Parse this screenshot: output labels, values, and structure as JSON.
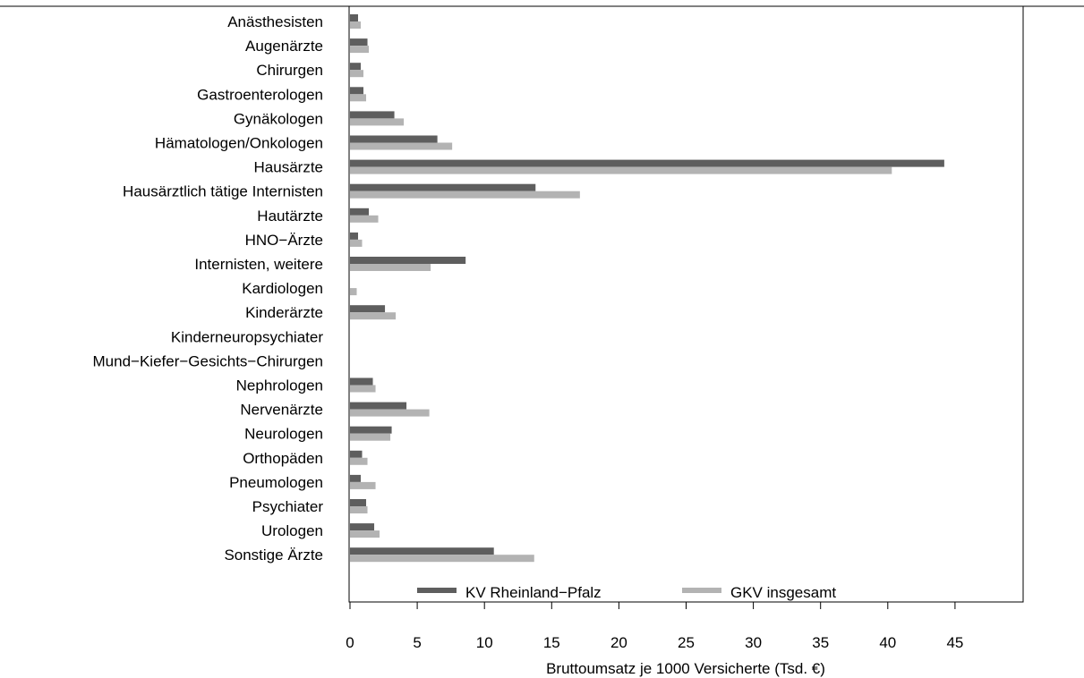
{
  "chart_data": {
    "type": "bar",
    "orientation": "horizontal",
    "categories": [
      "Anästhesisten",
      "Augenärzte",
      "Chirurgen",
      "Gastroenterologen",
      "Gynäkologen",
      "Hämatologen/Onkologen",
      "Hausärzte",
      "Hausärztlich tätige Internisten",
      "Hautärzte",
      "HNO−Ärzte",
      "Internisten, weitere",
      "Kardiologen",
      "Kinderärzte",
      "Kinderneuropsychiater",
      "Mund−Kiefer−Gesichts−Chirurgen",
      "Nephrologen",
      "Nervenärzte",
      "Neurologen",
      "Orthopäden",
      "Pneumologen",
      "Psychiater",
      "Urologen",
      "Sonstige Ärzte"
    ],
    "series": [
      {
        "name": "KV Rheinland−Pfalz",
        "color": "#5e5e5e",
        "values": [
          0.6,
          1.3,
          0.8,
          1.0,
          3.3,
          6.5,
          44.2,
          13.8,
          1.4,
          0.6,
          8.6,
          0.0,
          2.6,
          0.0,
          0.0,
          1.7,
          4.2,
          3.1,
          0.9,
          0.8,
          1.2,
          1.8,
          10.7
        ]
      },
      {
        "name": "GKV insgesamt",
        "color": "#b3b3b3",
        "values": [
          0.8,
          1.4,
          1.0,
          1.2,
          4.0,
          7.6,
          40.3,
          17.1,
          2.1,
          0.9,
          6.0,
          0.5,
          3.4,
          0.0,
          0.0,
          1.9,
          5.9,
          3.0,
          1.3,
          1.9,
          1.3,
          2.2,
          13.7
        ]
      }
    ],
    "xlabel": "Bruttoumsatz je 1000 Versicherte (Tsd. €)",
    "ylabel": "",
    "xlim": [
      0,
      50
    ],
    "xticks": [
      0,
      5,
      10,
      15,
      20,
      25,
      30,
      35,
      40,
      45
    ],
    "grid": false,
    "legend_position": "bottom"
  }
}
